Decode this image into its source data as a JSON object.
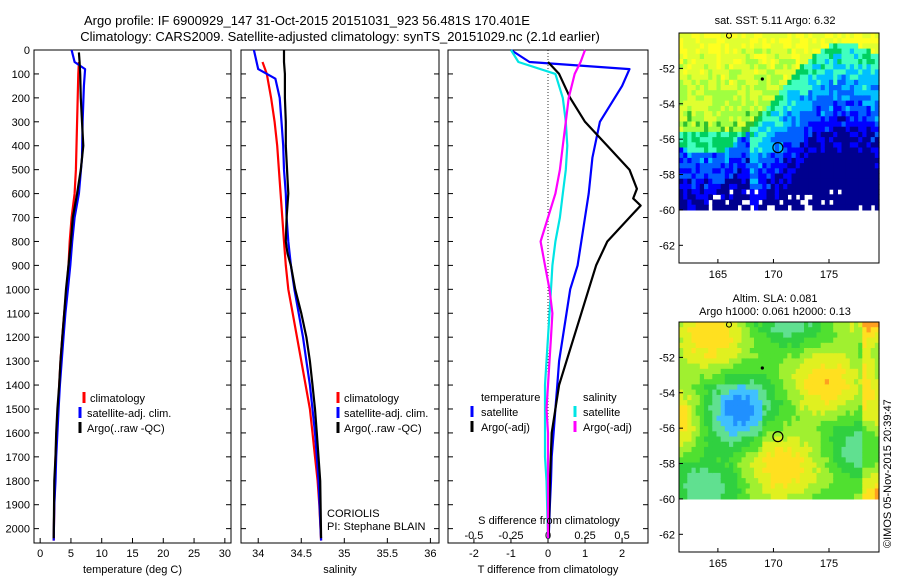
{
  "header": {
    "title_line1": "Argo profile: IF 6900929_147 31-Oct-2015 20151031_923 56.481S 170.401E",
    "title_line2": "Climatology: CARS2009. Satellite-adjusted climatology: synTS_20151029.nc (2.1d earlier)"
  },
  "colors": {
    "climatology": "#ff0000",
    "satellite": "#0000ff",
    "argo": "#000000",
    "satellite_salinity": "#00e5e5",
    "argo_salinity": "#ff00ff"
  },
  "chart_data": [
    {
      "type": "line",
      "panel": "temperature",
      "xlabel": "temperature (deg C)",
      "ylabel": "",
      "xlim": [
        -1,
        31
      ],
      "ylim": [
        2060,
        0
      ],
      "xticks": [
        0,
        5,
        10,
        15,
        20,
        25,
        30
      ],
      "yticks": [
        0,
        100,
        200,
        300,
        400,
        500,
        600,
        700,
        800,
        900,
        1000,
        1100,
        1200,
        1300,
        1400,
        1500,
        1600,
        1700,
        1800,
        1900,
        2000
      ],
      "legend": [
        "climatology",
        "satellite-adj. clim.",
        "Argo(..raw -QC)"
      ],
      "legend_position": "lower-center",
      "series": [
        {
          "name": "climatology",
          "color": "#ff0000",
          "x": [
            6.3,
            6.2,
            6.1,
            6.0,
            5.9,
            5.8,
            5.6,
            5.1,
            4.8,
            4.6,
            4.3,
            3.9,
            3.6,
            3.3,
            3.1,
            2.9,
            2.7,
            2.5,
            2.4,
            2.3,
            2.2
          ],
          "y": [
            50,
            100,
            200,
            300,
            400,
            500,
            600,
            700,
            800,
            900,
            1000,
            1100,
            1200,
            1300,
            1400,
            1500,
            1600,
            1700,
            1800,
            1900,
            2050
          ]
        },
        {
          "name": "satellite-adj. clim.",
          "color": "#0000ff",
          "x": [
            5.1,
            5.6,
            7.3,
            7.1,
            6.9,
            6.8,
            6.3,
            5.6,
            5.2,
            4.9,
            4.5,
            4.1,
            3.8,
            3.5,
            3.2,
            3.0,
            2.8,
            2.6,
            2.5,
            2.3,
            2.2
          ],
          "y": [
            0,
            50,
            80,
            150,
            300,
            450,
            600,
            700,
            800,
            900,
            1000,
            1100,
            1200,
            1300,
            1400,
            1500,
            1600,
            1700,
            1800,
            1900,
            2050
          ]
        },
        {
          "name": "Argo(..raw -QC)",
          "color": "#000000",
          "x": [
            6.3,
            6.4,
            6.5,
            6.6,
            6.8,
            7.0,
            6.6,
            6.0,
            5.3,
            5.0,
            4.6,
            4.2,
            3.9,
            3.6,
            3.3,
            3.1,
            2.8,
            2.6,
            2.5,
            2.3,
            2.2
          ],
          "y": [
            10,
            50,
            100,
            200,
            300,
            400,
            500,
            600,
            700,
            800,
            900,
            1000,
            1100,
            1200,
            1300,
            1400,
            1500,
            1600,
            1700,
            1800,
            2040
          ]
        }
      ]
    },
    {
      "type": "line",
      "panel": "salinity",
      "xlabel": "salinity",
      "ylabel": "",
      "xlim": [
        33.8,
        36.1
      ],
      "ylim": [
        2060,
        0
      ],
      "xticks": [
        34,
        34.5,
        35,
        35.5,
        36
      ],
      "legend": [
        "climatology",
        "satellite-adj. clim.",
        "Argo(..raw -QC)"
      ],
      "legend_position": "lower-center",
      "annotation": [
        "CORIOLIS",
        "PI: Stephane BLAIN"
      ],
      "series": [
        {
          "name": "climatology",
          "color": "#ff0000",
          "x": [
            34.05,
            34.1,
            34.15,
            34.19,
            34.22,
            34.24,
            34.26,
            34.28,
            34.3,
            34.32,
            34.35,
            34.4,
            34.45,
            34.5,
            34.55,
            34.6,
            34.63,
            34.66,
            34.69,
            34.71,
            34.73
          ],
          "y": [
            50,
            100,
            200,
            300,
            400,
            500,
            600,
            700,
            800,
            900,
            1000,
            1100,
            1200,
            1300,
            1400,
            1500,
            1600,
            1700,
            1800,
            1900,
            2050
          ]
        },
        {
          "name": "satellite-adj. clim.",
          "color": "#0000ff",
          "x": [
            33.95,
            34.0,
            34.2,
            34.25,
            34.27,
            34.29,
            34.3,
            34.32,
            34.33,
            34.35,
            34.38,
            34.42,
            34.47,
            34.52,
            34.56,
            34.6,
            34.63,
            34.66,
            34.68,
            34.7,
            34.73
          ],
          "y": [
            0,
            80,
            120,
            200,
            300,
            400,
            500,
            600,
            700,
            800,
            900,
            1000,
            1100,
            1200,
            1300,
            1400,
            1500,
            1600,
            1700,
            1800,
            2050
          ]
        },
        {
          "name": "Argo(..raw -QC)",
          "color": "#000000",
          "x": [
            34.3,
            34.3,
            34.31,
            34.31,
            34.32,
            34.32,
            34.35,
            34.33,
            34.32,
            34.34,
            34.38,
            34.43,
            34.5,
            34.56,
            34.6,
            34.63,
            34.66,
            34.68,
            34.7,
            34.72,
            34.73
          ],
          "y": [
            0,
            50,
            100,
            200,
            300,
            400,
            600,
            700,
            800,
            850,
            900,
            1000,
            1100,
            1200,
            1300,
            1400,
            1500,
            1600,
            1700,
            1800,
            2040
          ]
        }
      ]
    },
    {
      "type": "line",
      "panel": "difference",
      "xlabel": "T difference from climatology",
      "xlabel_top": "S difference from climatology",
      "xlim": [
        -2.7,
        2.7
      ],
      "ylim": [
        2060,
        0
      ],
      "xticks": [
        -2,
        -1,
        0,
        1,
        2
      ],
      "s_xticks": [
        "-0.5",
        "-0.25",
        "0",
        "0.25",
        "0.5"
      ],
      "legend_temperature": {
        "title": "temperature",
        "items": [
          "satellite",
          "Argo(-adj)"
        ]
      },
      "legend_salinity": {
        "title": "salinity",
        "items": [
          "satellite",
          "Argo(-adj)"
        ]
      },
      "legend_position": "lower-center",
      "series": [
        {
          "name": "satellite",
          "group": "temperature",
          "color": "#0000ff",
          "x": [
            -1.0,
            -0.5,
            2.2,
            2.0,
            1.4,
            1.2,
            1.1,
            1.0,
            0.9,
            0.8,
            0.6,
            0.5,
            0.4,
            0.3,
            0.25,
            0.2,
            0.15,
            0.1,
            0.08,
            0.05,
            0.02
          ],
          "y": [
            0,
            50,
            80,
            150,
            300,
            450,
            600,
            700,
            800,
            900,
            1000,
            1100,
            1200,
            1300,
            1400,
            1500,
            1600,
            1700,
            1800,
            1900,
            2040
          ]
        },
        {
          "name": "Argo(-adj)",
          "group": "temperature",
          "color": "#000000",
          "x": [
            0,
            0.3,
            0.6,
            1.0,
            1.6,
            2.2,
            2.4,
            2.3,
            2.5,
            2.2,
            1.6,
            1.3,
            1.1,
            0.9,
            0.7,
            0.5,
            0.3,
            0.2,
            0.1,
            0.05,
            0.02
          ],
          "y": [
            50,
            100,
            200,
            300,
            400,
            500,
            580,
            620,
            650,
            700,
            800,
            900,
            1000,
            1100,
            1200,
            1300,
            1400,
            1500,
            1600,
            1800,
            2040
          ]
        },
        {
          "name": "satellite",
          "group": "salinity",
          "color": "#00e5e5",
          "x": [
            -0.25,
            -0.2,
            0.05,
            0.1,
            0.12,
            0.13,
            0.12,
            0.1,
            0.08,
            0.05,
            0.03,
            0.02,
            0.01,
            0,
            -0.01,
            -0.02,
            -0.02,
            -0.02,
            -0.02,
            -0.01,
            0
          ],
          "y": [
            0,
            50,
            100,
            200,
            300,
            400,
            500,
            600,
            700,
            800,
            900,
            1000,
            1100,
            1200,
            1300,
            1400,
            1500,
            1600,
            1700,
            1800,
            2040
          ]
        },
        {
          "name": "Argo(-adj)",
          "group": "salinity",
          "color": "#ff00ff",
          "x": [
            0.25,
            0.22,
            0.18,
            0.14,
            0.12,
            0.1,
            0.08,
            0.05,
            0.0,
            -0.05,
            -0.02,
            0.01,
            0.03,
            0.02,
            0.01,
            0,
            -0.01,
            0,
            0,
            0,
            0
          ],
          "y": [
            0,
            50,
            100,
            200,
            300,
            400,
            500,
            600,
            700,
            800,
            900,
            1000,
            1100,
            1200,
            1300,
            1400,
            1500,
            1600,
            1700,
            1800,
            2040
          ]
        }
      ]
    },
    {
      "type": "heatmap",
      "panel": "sst-map",
      "title": "sat. SST: 5.11  Argo: 6.32",
      "xlim": [
        161.5,
        179.5
      ],
      "ylim": [
        -63,
        -50
      ],
      "xticks": [
        165,
        170,
        175
      ],
      "yticks": [
        -52,
        -54,
        -56,
        -58,
        -60,
        -62
      ],
      "data_ylim": [
        -60,
        -50
      ],
      "profile_marker": [
        170.4,
        -56.48
      ],
      "previous_marker": [
        169.0,
        -52.6
      ]
    },
    {
      "type": "heatmap",
      "panel": "sla-map",
      "title_line1": "Altim. SLA: 0.081",
      "title_line2": "Argo h1000: 0.061 h2000: 0.13",
      "xlim": [
        161.5,
        179.5
      ],
      "ylim": [
        -63,
        -50
      ],
      "xticks": [
        165,
        170,
        175
      ],
      "yticks": [
        -52,
        -54,
        -56,
        -58,
        -60,
        -62
      ],
      "data_ylim": [
        -60,
        -50
      ],
      "profile_marker": [
        170.4,
        -56.48
      ],
      "previous_marker": [
        169.0,
        -52.6
      ]
    }
  ],
  "footer": {
    "credit": "©IMOS 05-Nov-2015 20:39:47"
  }
}
